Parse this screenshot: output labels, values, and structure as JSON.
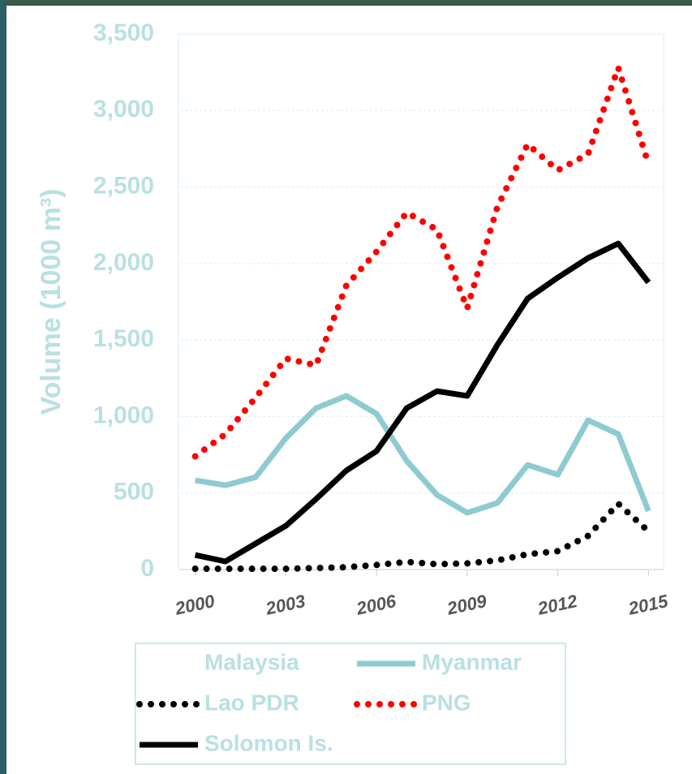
{
  "chart_data": {
    "type": "line",
    "ylabel": "Volume (1000 m³)",
    "x": [
      2000,
      2001,
      2002,
      2003,
      2004,
      2005,
      2006,
      2007,
      2008,
      2009,
      2010,
      2011,
      2012,
      2013,
      2014,
      2015
    ],
    "xlim": [
      1999.5,
      2015.5
    ],
    "xticks": [
      2000,
      2003,
      2006,
      2009,
      2012,
      2015
    ],
    "ylim": [
      0,
      3500
    ],
    "yticks": [
      0,
      500,
      {
        "value": 1000,
        "label": "1,000"
      },
      {
        "value": 1500,
        "label": "1,500"
      },
      {
        "value": 2000,
        "label": "2,000"
      },
      {
        "value": 2500,
        "label": "2,500"
      },
      {
        "value": 3000,
        "label": "3,000"
      },
      {
        "value": 3500,
        "label": "3,500"
      }
    ],
    "grid": true,
    "series": [
      {
        "name": "Malaysia",
        "color": "#ffffff",
        "dash": "solid",
        "values": [
          null,
          null,
          null,
          null,
          null,
          null,
          null,
          null,
          null,
          null,
          null,
          null,
          null,
          null,
          null,
          null
        ]
      },
      {
        "name": "Myanmar",
        "color": "#8ecbd0",
        "dash": "solid",
        "values": [
          583,
          551,
          604,
          859,
          1055,
          1135,
          1018,
          710,
          488,
          371,
          435,
          684,
          620,
          976,
          885,
          382
        ]
      },
      {
        "name": "Lao PDR",
        "color": "#000000",
        "dash": "dotted",
        "values": [
          5,
          5,
          5,
          5,
          10,
          15,
          30,
          50,
          35,
          40,
          60,
          100,
          120,
          220,
          430,
          250
        ]
      },
      {
        "name": "PNG",
        "color": "#ff0000",
        "dash": "dotted",
        "values": [
          740,
          885,
          1124,
          1379,
          1336,
          1856,
          2078,
          2333,
          2222,
          1707,
          2370,
          2780,
          2610,
          2715,
          3280,
          2650
        ]
      },
      {
        "name": "Solomon Is.",
        "color": "#000000",
        "dash": "solid",
        "values": [
          95,
          53,
          170,
          286,
          461,
          647,
          774,
          1055,
          1166,
          1135,
          1469,
          1771,
          1909,
          2036,
          2131,
          1877
        ]
      }
    ]
  }
}
